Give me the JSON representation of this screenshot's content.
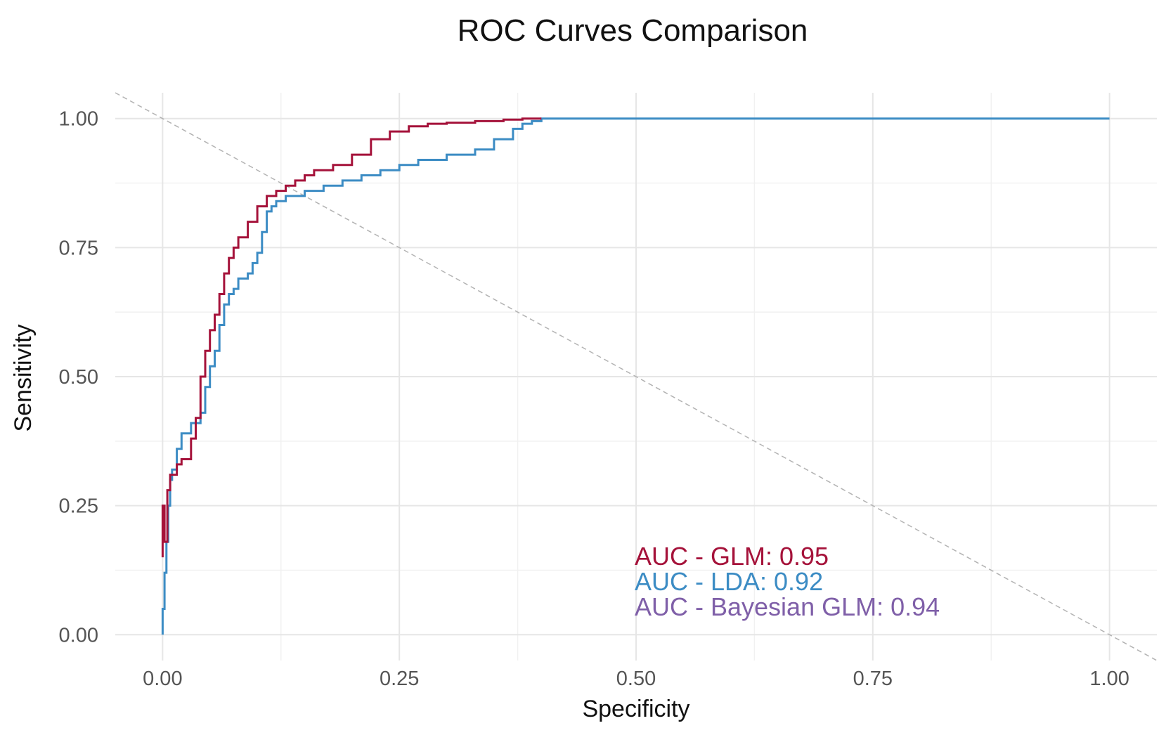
{
  "chart_data": {
    "type": "line",
    "title": "ROC Curves Comparison",
    "xlabel": "Specificity",
    "ylabel": "Sensitivity",
    "xlim": [
      -0.05,
      1.05
    ],
    "ylim": [
      -0.05,
      1.05
    ],
    "x_ticks": [
      0.0,
      0.25,
      0.5,
      0.75,
      1.0
    ],
    "y_ticks": [
      0.0,
      0.25,
      0.5,
      0.75,
      1.0
    ],
    "x_tick_labels": [
      "0.00",
      "0.25",
      "0.50",
      "0.75",
      "1.00"
    ],
    "y_tick_labels": [
      "0.00",
      "0.25",
      "0.50",
      "0.75",
      "1.00"
    ],
    "reference_line": {
      "x": [
        -0.05,
        1.05
      ],
      "y": [
        1.05,
        -0.05
      ],
      "color": "#b3b3b3",
      "style": "dashed"
    },
    "series": [
      {
        "name": "LDA",
        "color": "#3c8cc4",
        "x": [
          0.0,
          0.0,
          0.002,
          0.004,
          0.006,
          0.008,
          0.01,
          0.015,
          0.02,
          0.03,
          0.04,
          0.045,
          0.05,
          0.055,
          0.06,
          0.065,
          0.07,
          0.075,
          0.08,
          0.09,
          0.095,
          0.1,
          0.105,
          0.11,
          0.115,
          0.12,
          0.13,
          0.15,
          0.17,
          0.19,
          0.21,
          0.23,
          0.25,
          0.27,
          0.3,
          0.33,
          0.35,
          0.37,
          0.38,
          0.39,
          0.4,
          1.0
        ],
        "y": [
          0.0,
          0.05,
          0.12,
          0.18,
          0.25,
          0.3,
          0.32,
          0.36,
          0.39,
          0.41,
          0.43,
          0.48,
          0.52,
          0.55,
          0.6,
          0.64,
          0.66,
          0.67,
          0.69,
          0.7,
          0.72,
          0.74,
          0.78,
          0.82,
          0.83,
          0.84,
          0.85,
          0.86,
          0.87,
          0.88,
          0.89,
          0.9,
          0.91,
          0.92,
          0.93,
          0.94,
          0.96,
          0.98,
          0.99,
          0.995,
          1.0,
          1.0
        ]
      },
      {
        "name": "GLM",
        "color": "#a5123a",
        "x": [
          0.0,
          0.0,
          0.002,
          0.005,
          0.008,
          0.015,
          0.02,
          0.03,
          0.035,
          0.04,
          0.045,
          0.05,
          0.055,
          0.06,
          0.065,
          0.07,
          0.075,
          0.08,
          0.09,
          0.1,
          0.11,
          0.12,
          0.13,
          0.14,
          0.15,
          0.16,
          0.18,
          0.2,
          0.22,
          0.24,
          0.26,
          0.28,
          0.3,
          0.33,
          0.36,
          0.38,
          0.4
        ],
        "y": [
          0.15,
          0.25,
          0.18,
          0.28,
          0.31,
          0.33,
          0.34,
          0.38,
          0.42,
          0.5,
          0.55,
          0.59,
          0.62,
          0.66,
          0.7,
          0.73,
          0.75,
          0.77,
          0.8,
          0.83,
          0.85,
          0.86,
          0.87,
          0.88,
          0.89,
          0.9,
          0.91,
          0.93,
          0.96,
          0.975,
          0.985,
          0.99,
          0.992,
          0.995,
          0.998,
          1.0,
          1.0
        ]
      }
    ],
    "annotations": [
      {
        "text": "AUC - GLM: 0.95",
        "color": "#a5123a"
      },
      {
        "text": "AUC - LDA: 0.92",
        "color": "#3c8cc4"
      },
      {
        "text": "AUC - Bayesian GLM: 0.94",
        "color": "#7f5fa8"
      }
    ]
  }
}
